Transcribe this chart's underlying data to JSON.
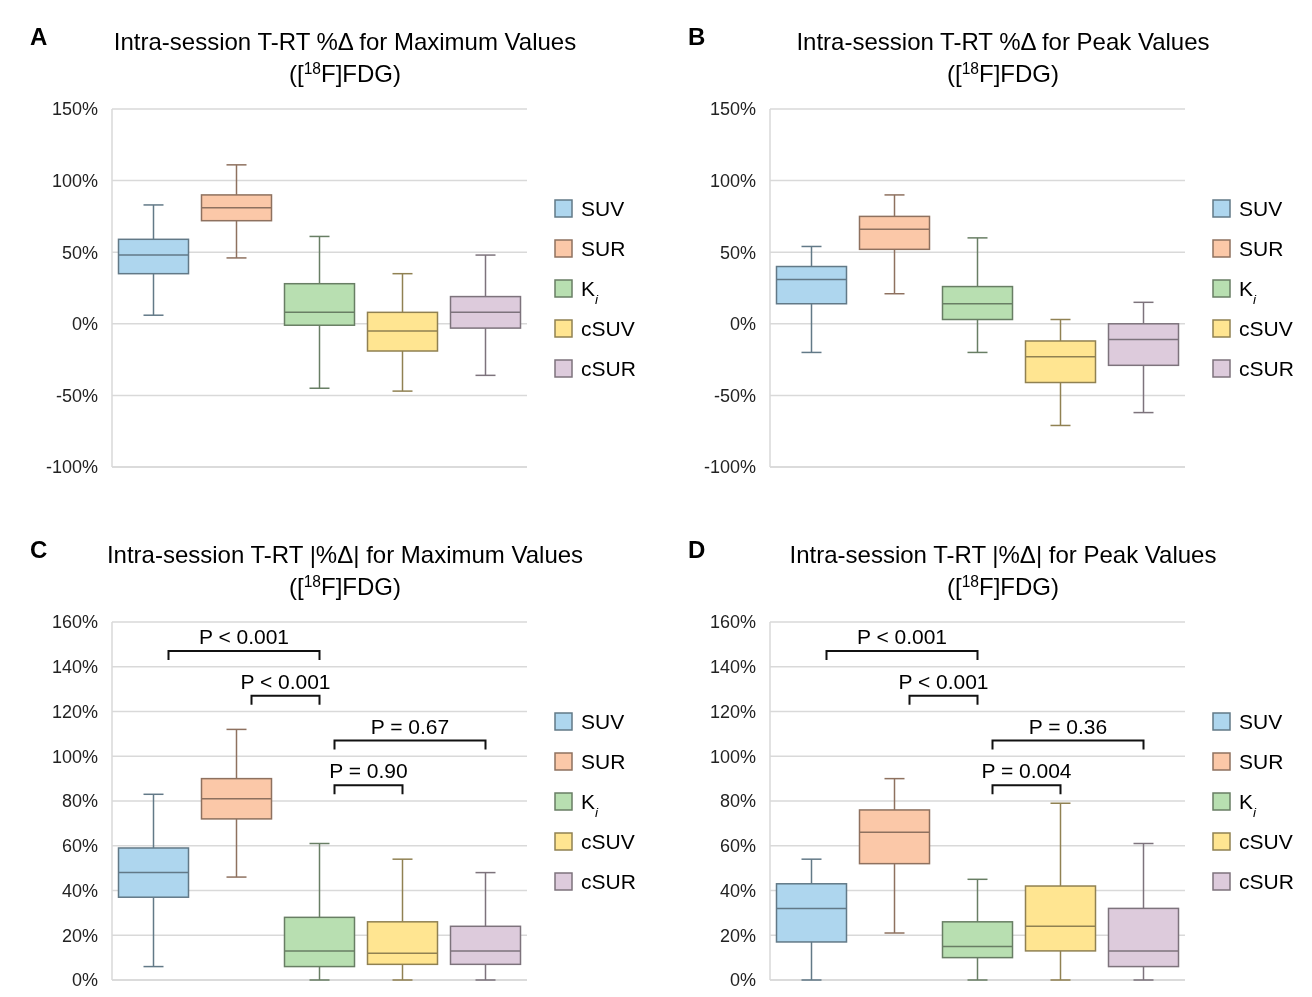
{
  "chart_data": [
    {
      "type": "box",
      "title": "Intra-session T-RT %Δ for Maximum Values",
      "subtitle": "([$^{18}$F]FDG)",
      "annotations": [
        "A"
      ],
      "categories": [
        null,
        null,
        null,
        null,
        null
      ],
      "ylim": [
        -100,
        150
      ],
      "yticks": [
        {
          "value": -100,
          "label": "-100%"
        },
        {
          "value": -50,
          "label": "-50%"
        },
        {
          "value": 0,
          "label": "0%"
        },
        {
          "value": 50,
          "label": "50%"
        },
        {
          "value": 100,
          "label": "100%"
        },
        {
          "value": 150,
          "label": "150%"
        }
      ],
      "grid": "y",
      "legend": "right",
      "series": [
        {
          "name": "SUV",
          "color": "#aed6ee",
          "boxes": [
            {
              "low": 6,
              "q1": 35,
              "median": 48,
              "q3": 59,
              "high": 83
            },
            null,
            null,
            null,
            null
          ]
        },
        {
          "name": "SUR",
          "color": "#fbc8a8",
          "boxes": [
            null,
            {
              "low": 46,
              "q1": 72,
              "median": 81,
              "q3": 90,
              "high": 111
            },
            null,
            null,
            null
          ]
        },
        {
          "name": "K$_{i}$",
          "color": "#b8dfb1",
          "boxes": [
            null,
            null,
            {
              "low": -45,
              "q1": -1,
              "median": 8,
              "q3": 28,
              "high": 61
            },
            null,
            null
          ]
        },
        {
          "name": "cSUV",
          "color": "#ffe591",
          "boxes": [
            null,
            null,
            null,
            {
              "low": -47,
              "q1": -19,
              "median": -5,
              "q3": 8,
              "high": 35
            },
            null
          ]
        },
        {
          "name": "cSUR",
          "color": "#ddcbdc",
          "boxes": [
            null,
            null,
            null,
            null,
            {
              "low": -36,
              "q1": -3,
              "median": 8,
              "q3": 19,
              "high": 48
            }
          ]
        }
      ]
    },
    {
      "type": "box",
      "title": "Intra-session T-RT %Δ for Peak Values",
      "subtitle": "([$^{18}$F]FDG)",
      "annotations": [
        "B"
      ],
      "categories": [
        null,
        null,
        null,
        null,
        null
      ],
      "ylim": [
        -100,
        150
      ],
      "yticks": [
        {
          "value": -100,
          "label": "-100%"
        },
        {
          "value": -50,
          "label": "-50%"
        },
        {
          "value": 0,
          "label": "0%"
        },
        {
          "value": 50,
          "label": "50%"
        },
        {
          "value": 100,
          "label": "100%"
        },
        {
          "value": 150,
          "label": "150%"
        }
      ],
      "grid": "y",
      "legend": "right",
      "series": [
        {
          "name": "SUV",
          "color": "#aed6ee",
          "boxes": [
            {
              "low": -20,
              "q1": 14,
              "median": 31,
              "q3": 40,
              "high": 54
            },
            null,
            null,
            null,
            null
          ]
        },
        {
          "name": "SUR",
          "color": "#fbc8a8",
          "boxes": [
            null,
            {
              "low": 21,
              "q1": 52,
              "median": 66,
              "q3": 75,
              "high": 90
            },
            null,
            null,
            null
          ]
        },
        {
          "name": "K$_{i}$",
          "color": "#b8dfb1",
          "boxes": [
            null,
            null,
            {
              "low": -20,
              "q1": 3,
              "median": 14,
              "q3": 26,
              "high": 60
            },
            null,
            null
          ]
        },
        {
          "name": "cSUV",
          "color": "#ffe591",
          "boxes": [
            null,
            null,
            null,
            {
              "low": -71,
              "q1": -41,
              "median": -23,
              "q3": -12,
              "high": 3
            },
            null
          ]
        },
        {
          "name": "cSUR",
          "color": "#ddcbdc",
          "boxes": [
            null,
            null,
            null,
            null,
            {
              "low": -62,
              "q1": -29,
              "median": -11,
              "q3": 0,
              "high": 15
            }
          ]
        }
      ]
    },
    {
      "type": "box",
      "title": "Intra-session T-RT |%Δ| for Maximum Values",
      "subtitle": "([$^{18}$F]FDG)",
      "annotations": [
        "C",
        "P < 0.001",
        "P < 0.001",
        "P = 0.67",
        "P = 0.90"
      ],
      "categories": [
        null,
        null,
        null,
        null,
        null
      ],
      "ylim": [
        0,
        160
      ],
      "yticks": [
        {
          "value": 0,
          "label": "0%"
        },
        {
          "value": 20,
          "label": "20%"
        },
        {
          "value": 40,
          "label": "40%"
        },
        {
          "value": 60,
          "label": "60%"
        },
        {
          "value": 80,
          "label": "80%"
        },
        {
          "value": 100,
          "label": "100%"
        },
        {
          "value": 120,
          "label": "120%"
        },
        {
          "value": 140,
          "label": "140%"
        },
        {
          "value": 160,
          "label": "160%"
        }
      ],
      "grid": "y",
      "legend": "right",
      "series": [
        {
          "name": "SUV",
          "color": "#aed6ee",
          "boxes": [
            {
              "low": 6,
              "q1": 37,
              "median": 48,
              "q3": 59,
              "high": 83
            },
            null,
            null,
            null,
            null
          ]
        },
        {
          "name": "SUR",
          "color": "#fbc8a8",
          "boxes": [
            null,
            {
              "low": 46,
              "q1": 72,
              "median": 81,
              "q3": 90,
              "high": 112
            },
            null,
            null,
            null
          ]
        },
        {
          "name": "K$_{i}$",
          "color": "#b8dfb1",
          "boxes": [
            null,
            null,
            {
              "low": 0,
              "q1": 6,
              "median": 13,
              "q3": 28,
              "high": 61
            },
            null,
            null
          ]
        },
        {
          "name": "cSUV",
          "color": "#ffe591",
          "boxes": [
            null,
            null,
            null,
            {
              "low": 0,
              "q1": 7,
              "median": 12,
              "q3": 26,
              "high": 54
            },
            null
          ]
        },
        {
          "name": "cSUR",
          "color": "#ddcbdc",
          "boxes": [
            null,
            null,
            null,
            null,
            {
              "low": 0,
              "q1": 7,
              "median": 13,
              "q3": 24,
              "high": 48
            }
          ]
        }
      ]
    },
    {
      "type": "box",
      "title": "Intra-session T-RT |%Δ| for Peak Values",
      "subtitle": "([$^{18}$F]FDG)",
      "annotations": [
        "D",
        "P < 0.001",
        "P < 0.001",
        "P = 0.36",
        "P = 0.004"
      ],
      "categories": [
        null,
        null,
        null,
        null,
        null
      ],
      "ylim": [
        0,
        160
      ],
      "yticks": [
        {
          "value": 0,
          "label": "0%"
        },
        {
          "value": 20,
          "label": "20%"
        },
        {
          "value": 40,
          "label": "40%"
        },
        {
          "value": 60,
          "label": "60%"
        },
        {
          "value": 80,
          "label": "80%"
        },
        {
          "value": 100,
          "label": "100%"
        },
        {
          "value": 120,
          "label": "120%"
        },
        {
          "value": 140,
          "label": "140%"
        },
        {
          "value": 160,
          "label": "160%"
        }
      ],
      "grid": "y",
      "legend": "right",
      "series": [
        {
          "name": "SUV",
          "color": "#aed6ee",
          "boxes": [
            {
              "low": 0,
              "q1": 17,
              "median": 32,
              "q3": 43,
              "high": 54
            },
            null,
            null,
            null,
            null
          ]
        },
        {
          "name": "SUR",
          "color": "#fbc8a8",
          "boxes": [
            null,
            {
              "low": 21,
              "q1": 52,
              "median": 66,
              "q3": 76,
              "high": 90
            },
            null,
            null,
            null
          ]
        },
        {
          "name": "K$_{i}$",
          "color": "#b8dfb1",
          "boxes": [
            null,
            null,
            {
              "low": 0,
              "q1": 10,
              "median": 15,
              "q3": 26,
              "high": 45
            },
            null,
            null
          ]
        },
        {
          "name": "cSUV",
          "color": "#ffe591",
          "boxes": [
            null,
            null,
            null,
            {
              "low": 0,
              "q1": 13,
              "median": 24,
              "q3": 42,
              "high": 79
            },
            null
          ]
        },
        {
          "name": "cSUR",
          "color": "#ddcbdc",
          "boxes": [
            null,
            null,
            null,
            null,
            {
              "low": 0,
              "q1": 6,
              "median": 13,
              "q3": 32,
              "high": 61
            }
          ]
        }
      ]
    }
  ]
}
